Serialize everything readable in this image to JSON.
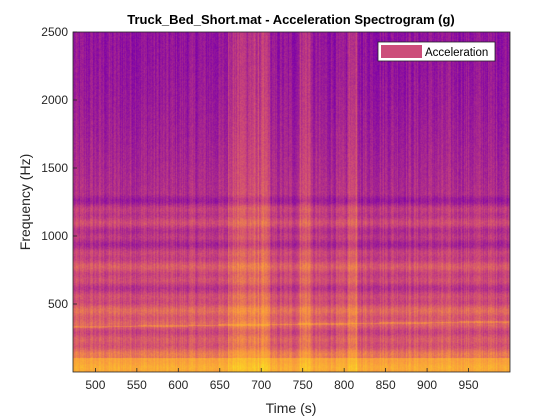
{
  "chart_data": {
    "type": "heatmap",
    "title": "Truck_Bed_Short.mat - Acceleration Spectrogram (g)",
    "xlabel": "Time (s)",
    "ylabel": "Frequency (Hz)",
    "xlim": [
      473,
      1000
    ],
    "ylim": [
      0,
      2500
    ],
    "xticks": [
      500,
      550,
      600,
      650,
      700,
      750,
      800,
      850,
      900,
      950
    ],
    "yticks": [
      500,
      1000,
      1500,
      2000,
      2500
    ],
    "legend": {
      "entries": [
        "Acceleration"
      ],
      "swatch_color": "#cc4d7a",
      "placement": "top-right"
    },
    "colormap": "plasma",
    "grid": false,
    "features": {
      "high_energy_time_bands": [
        [
          660,
          710
        ],
        [
          745,
          760
        ],
        [
          805,
          815
        ]
      ],
      "tonal_line_hz": [
        330,
        370
      ],
      "low_freq_floor_hz": [
        0,
        100
      ]
    }
  }
}
